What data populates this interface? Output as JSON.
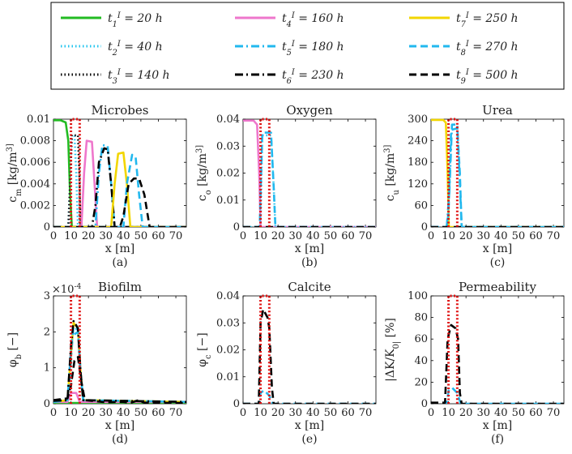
{
  "legend": [
    {
      "label": "t_1^I = 20 h",
      "color": "#22bb22",
      "dash": "solid"
    },
    {
      "label": "t_4^I = 160 h",
      "color": "#ee77cc",
      "dash": "solid"
    },
    {
      "label": "t_7^I = 250 h",
      "color": "#f2d600",
      "dash": "solid"
    },
    {
      "label": "t_2^I = 40 h",
      "color": "#22c4ee",
      "dash": "dot"
    },
    {
      "label": "t_5^I = 180 h",
      "color": "#22b8ee",
      "dash": "dashdot"
    },
    {
      "label": "t_8^I = 270 h",
      "color": "#22b8ee",
      "dash": "dash"
    },
    {
      "label": "t_3^I = 140 h",
      "color": "#000000",
      "dash": "dot"
    },
    {
      "label": "t_6^I = 230 h",
      "color": "#000000",
      "dash": "dashdot"
    },
    {
      "label": "t_9^I = 500 h",
      "color": "#000000",
      "dash": "dash"
    }
  ],
  "chart_data": [
    {
      "type": "line",
      "title": "Microbes",
      "caption": "(a)",
      "xlabel": "x [m]",
      "ylabel": "c_m [kg/m^3]",
      "xlim": [
        0,
        76
      ],
      "ylim": [
        0,
        0.01
      ],
      "xticks": [
        "0",
        "10",
        "20",
        "30",
        "40",
        "50",
        "60",
        "70"
      ],
      "yticks": [
        "0",
        "0.002",
        "0.004",
        "0.006",
        "0.008",
        "0.01"
      ],
      "injection_box": [
        10,
        15
      ],
      "series": [
        {
          "name": "t1 = 20 h",
          "points": [
            [
              0,
              0.0099
            ],
            [
              4,
              0.0099
            ],
            [
              7,
              0.0097
            ],
            [
              8.5,
              0.008
            ],
            [
              9.5,
              0.003
            ],
            [
              10.5,
              0
            ],
            [
              76,
              0
            ]
          ]
        },
        {
          "name": "t2 = 40 h",
          "points": [
            [
              0,
              0
            ],
            [
              8.5,
              0
            ],
            [
              9.5,
              0.004
            ],
            [
              10.5,
              0.0085
            ],
            [
              12,
              0.0085
            ],
            [
              13,
              0.005
            ],
            [
              14,
              0
            ],
            [
              76,
              0
            ]
          ]
        },
        {
          "name": "t3 = 140 h",
          "points": [
            [
              0,
              0
            ],
            [
              8.5,
              0
            ],
            [
              9.5,
              0.004
            ],
            [
              10.5,
              0.0085
            ],
            [
              14,
              0.0085
            ],
            [
              14.8,
              0.005
            ],
            [
              15.5,
              0
            ],
            [
              76,
              0
            ]
          ]
        },
        {
          "name": "t4 = 160 h",
          "points": [
            [
              0,
              0
            ],
            [
              16,
              0
            ],
            [
              17.5,
              0.005
            ],
            [
              19,
              0.008
            ],
            [
              22,
              0.0079
            ],
            [
              23.5,
              0.004
            ],
            [
              25,
              0
            ],
            [
              76,
              0
            ]
          ]
        },
        {
          "name": "t5 = 180 h",
          "points": [
            [
              0,
              0
            ],
            [
              24,
              0
            ],
            [
              26,
              0.005
            ],
            [
              28,
              0.0076
            ],
            [
              31,
              0.0075
            ],
            [
              33,
              0.004
            ],
            [
              35,
              0
            ],
            [
              76,
              0
            ]
          ]
        },
        {
          "name": "t6 = 230 h",
          "points": [
            [
              0,
              0
            ],
            [
              22,
              0
            ],
            [
              24,
              0.002
            ],
            [
              26,
              0.006
            ],
            [
              29,
              0.0073
            ],
            [
              31,
              0.0072
            ],
            [
              33,
              0.004
            ],
            [
              35,
              0
            ],
            [
              76,
              0
            ]
          ]
        },
        {
          "name": "t7 = 250 h",
          "points": [
            [
              0,
              0
            ],
            [
              33,
              0
            ],
            [
              35,
              0.004
            ],
            [
              37,
              0.0068
            ],
            [
              40,
              0.0069
            ],
            [
              42,
              0.004
            ],
            [
              44,
              0
            ],
            [
              76,
              0
            ]
          ]
        },
        {
          "name": "t8 = 270 h",
          "points": [
            [
              0,
              0
            ],
            [
              40,
              0
            ],
            [
              42,
              0.004
            ],
            [
              45,
              0.0067
            ],
            [
              47,
              0.0065
            ],
            [
              49,
              0.003
            ],
            [
              51,
              0
            ],
            [
              76,
              0
            ]
          ]
        },
        {
          "name": "t9 = 500 h",
          "points": [
            [
              0,
              0
            ],
            [
              38,
              0
            ],
            [
              40,
              0.001
            ],
            [
              43,
              0.004
            ],
            [
              46,
              0.0045
            ],
            [
              49,
              0.0045
            ],
            [
              52,
              0.003
            ],
            [
              55,
              0
            ],
            [
              76,
              0
            ]
          ]
        }
      ]
    },
    {
      "type": "line",
      "title": "Oxygen",
      "caption": "(b)",
      "xlabel": "x [m]",
      "ylabel": "c_o [kg/m^3]",
      "xlim": [
        0,
        76
      ],
      "ylim": [
        0,
        0.04
      ],
      "xticks": [
        "0",
        "10",
        "20",
        "30",
        "40",
        "50",
        "60",
        "70"
      ],
      "yticks": [
        "0",
        "0.01",
        "0.02",
        "0.03",
        "0.04"
      ],
      "injection_box": [
        10,
        15
      ],
      "series": [
        {
          "name": "t4 = 160 h",
          "points": [
            [
              0,
              0.0395
            ],
            [
              6,
              0.0395
            ],
            [
              8,
              0.038
            ],
            [
              9.2,
              0.02
            ],
            [
              10,
              0
            ],
            [
              76,
              0
            ]
          ]
        },
        {
          "name": "t2 = 40 h",
          "points": [
            [
              0,
              0
            ],
            [
              10,
              0
            ],
            [
              11,
              0.034
            ],
            [
              16,
              0.034
            ],
            [
              17.5,
              0.015
            ],
            [
              18.5,
              0
            ],
            [
              76,
              0
            ]
          ]
        },
        {
          "name": "t8 = 270 h",
          "points": [
            [
              0,
              0
            ],
            [
              9.5,
              0
            ],
            [
              11,
              0.035
            ],
            [
              16,
              0.035
            ],
            [
              17.5,
              0.015
            ],
            [
              18.5,
              0
            ],
            [
              76,
              0
            ]
          ]
        },
        {
          "name": "t9 = 500 h",
          "points": [
            [
              0,
              0
            ],
            [
              76,
              0
            ]
          ]
        }
      ]
    },
    {
      "type": "line",
      "title": "Urea",
      "caption": "(c)",
      "xlabel": "x [m]",
      "ylabel": "c_u [kg/m^3]",
      "xlim": [
        0,
        76
      ],
      "ylim": [
        0,
        300
      ],
      "xticks": [
        "0",
        "10",
        "20",
        "30",
        "40",
        "50",
        "60",
        "70"
      ],
      "yticks": [
        "0",
        "60",
        "120",
        "180",
        "240",
        "300"
      ],
      "injection_box": [
        10,
        15
      ],
      "series": [
        {
          "name": "t7 = 250 h",
          "points": [
            [
              0,
              298
            ],
            [
              7,
              298
            ],
            [
              8.5,
              290
            ],
            [
              9.5,
              150
            ],
            [
              10.2,
              0
            ],
            [
              76,
              0
            ]
          ]
        },
        {
          "name": "t8 = 270 h",
          "points": [
            [
              0,
              0
            ],
            [
              9,
              0
            ],
            [
              10,
              40
            ],
            [
              11.5,
              270
            ],
            [
              15,
              275
            ],
            [
              16.5,
              150
            ],
            [
              17.5,
              0
            ],
            [
              76,
              0
            ]
          ]
        },
        {
          "name": "t5 = 180 h",
          "points": [
            [
              0,
              0
            ],
            [
              9,
              0
            ],
            [
              10.5,
              100
            ],
            [
              12,
              285
            ],
            [
              15,
              285
            ],
            [
              16.5,
              120
            ],
            [
              17.5,
              0
            ],
            [
              76,
              0
            ]
          ]
        },
        {
          "name": "t9 = 500 h",
          "points": [
            [
              0,
              0
            ],
            [
              76,
              0
            ]
          ]
        }
      ]
    },
    {
      "type": "line",
      "title": "Biofilm",
      "caption": "(d)",
      "xlabel": "x [m]",
      "ylabel": "φ_b [−]",
      "exponent": "×10^-4",
      "xlim": [
        0,
        76
      ],
      "ylim": [
        0,
        3
      ],
      "xticks": [
        "0",
        "10",
        "20",
        "30",
        "40",
        "50",
        "60",
        "70"
      ],
      "yticks": [
        "0",
        "1",
        "2",
        "3"
      ],
      "injection_box": [
        10,
        15
      ],
      "series": [
        {
          "name": "t1 = 20 h",
          "points": [
            [
              0,
              0.02
            ],
            [
              76,
              0.02
            ]
          ]
        },
        {
          "name": "t4 = 160 h",
          "points": [
            [
              0,
              0.05
            ],
            [
              8,
              0.05
            ],
            [
              10,
              0.3
            ],
            [
              13,
              0.3
            ],
            [
              15,
              0.05
            ],
            [
              76,
              0.05
            ]
          ]
        },
        {
          "name": "t5 = 180 h",
          "points": [
            [
              0,
              0.05
            ],
            [
              8,
              0.1
            ],
            [
              9.5,
              0.8
            ],
            [
              11,
              1.9
            ],
            [
              14,
              2.0
            ],
            [
              15.5,
              0.8
            ],
            [
              17,
              0.1
            ],
            [
              76,
              0.05
            ]
          ]
        },
        {
          "name": "t7 = 250 h",
          "points": [
            [
              0,
              0.05
            ],
            [
              8,
              0.1
            ],
            [
              10,
              1.4
            ],
            [
              11.5,
              2.25
            ],
            [
              14,
              2.1
            ],
            [
              15.5,
              0.9
            ],
            [
              17,
              0.1
            ],
            [
              76,
              0.05
            ]
          ]
        },
        {
          "name": "t8 = 270 h",
          "points": [
            [
              0,
              0.05
            ],
            [
              8,
              0.1
            ],
            [
              10,
              1.5
            ],
            [
              11.5,
              2.15
            ],
            [
              14,
              2.05
            ],
            [
              15.5,
              0.9
            ],
            [
              17,
              0.1
            ],
            [
              76,
              0.05
            ]
          ]
        },
        {
          "name": "t6 = 230 h",
          "points": [
            [
              0,
              0.08
            ],
            [
              8,
              0.1
            ],
            [
              10,
              1.6
            ],
            [
              11.5,
              2.3
            ],
            [
              14,
              2.1
            ],
            [
              15.5,
              0.9
            ],
            [
              17,
              0.1
            ],
            [
              76,
              0.05
            ]
          ]
        },
        {
          "name": "t9 = 500 h",
          "points": [
            [
              0,
              0.1
            ],
            [
              8,
              0.15
            ],
            [
              10,
              0.5
            ],
            [
              12,
              1.2
            ],
            [
              14,
              1.3
            ],
            [
              16,
              0.6
            ],
            [
              18,
              0.1
            ],
            [
              30,
              0.04
            ],
            [
              40,
              0.05
            ],
            [
              44,
              0.02
            ],
            [
              48,
              0.09
            ],
            [
              52,
              0.03
            ],
            [
              76,
              0.02
            ]
          ]
        }
      ]
    },
    {
      "type": "line",
      "title": "Calcite",
      "caption": "(e)",
      "xlabel": "x [m]",
      "ylabel": "φ_c [−]",
      "xlim": [
        0,
        76
      ],
      "ylim": [
        0,
        0.04
      ],
      "xticks": [
        "0",
        "10",
        "20",
        "30",
        "40",
        "50",
        "60",
        "70"
      ],
      "yticks": [
        "0",
        "0.01",
        "0.02",
        "0.03",
        "0.04"
      ],
      "injection_box": [
        10,
        15
      ],
      "series": [
        {
          "name": "t8 = 270 h",
          "points": [
            [
              0,
              0
            ],
            [
              9,
              0
            ],
            [
              10,
              0.004
            ],
            [
              12,
              0.005
            ],
            [
              15,
              0.003
            ],
            [
              17,
              0
            ],
            [
              76,
              0
            ]
          ]
        },
        {
          "name": "t9 = 500 h",
          "points": [
            [
              0,
              0
            ],
            [
              9,
              0
            ],
            [
              10,
              0.03
            ],
            [
              11.5,
              0.035
            ],
            [
              14,
              0.032
            ],
            [
              15,
              0.028
            ],
            [
              16.5,
              0.006
            ],
            [
              17.5,
              0
            ],
            [
              76,
              0
            ]
          ]
        }
      ]
    },
    {
      "type": "line",
      "title": "Permeability",
      "caption": "(f)",
      "xlabel": "x [m]",
      "ylabel": "|ΔK/K_0| [%]",
      "xlim": [
        0,
        76
      ],
      "ylim": [
        0,
        100
      ],
      "xticks": [
        "0",
        "10",
        "20",
        "30",
        "40",
        "50",
        "60",
        "70"
      ],
      "yticks": [
        "0",
        "20",
        "40",
        "60",
        "80",
        "100"
      ],
      "injection_box": [
        10,
        15
      ],
      "series": [
        {
          "name": "t8 = 270 h",
          "points": [
            [
              0,
              0
            ],
            [
              9,
              0
            ],
            [
              10,
              12
            ],
            [
              12,
              15
            ],
            [
              15,
              10
            ],
            [
              17,
              0
            ],
            [
              76,
              0
            ]
          ]
        },
        {
          "name": "t9 = 500 h",
          "points": [
            [
              0,
              1
            ],
            [
              8,
              1
            ],
            [
              9.5,
              60
            ],
            [
              11.5,
              73
            ],
            [
              14,
              70
            ],
            [
              15.5,
              60
            ],
            [
              16.5,
              10
            ],
            [
              17.5,
              0
            ],
            [
              76,
              0
            ]
          ]
        }
      ]
    }
  ]
}
